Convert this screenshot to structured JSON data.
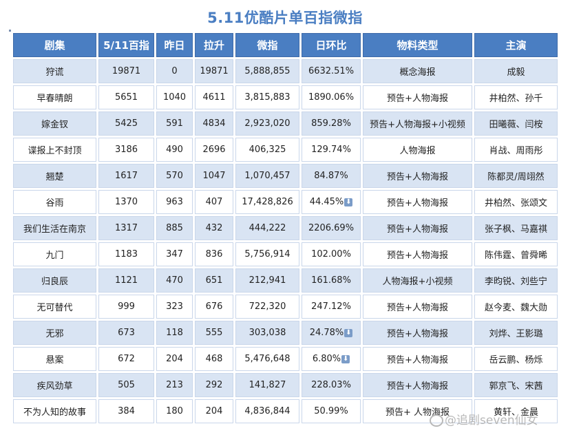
{
  "title": "5.11优酷片单百指微指",
  "headers": [
    "剧集",
    "5/11百指",
    "昨日",
    "拉升",
    "微指",
    "日环比",
    "物料类型",
    "主演"
  ],
  "rows": [
    {
      "name": "狩谎",
      "baizhi": "19871",
      "yesterday": "0",
      "rise": "19871",
      "weizhi": "5,888,855",
      "change": "6632.51%",
      "down": false,
      "material": "概念海报",
      "cast": "成毅"
    },
    {
      "name": "早春晴朗",
      "baizhi": "5651",
      "yesterday": "1040",
      "rise": "4611",
      "weizhi": "3,815,883",
      "change": "1890.06%",
      "down": false,
      "material": "预告+人物海报",
      "cast": "井柏然、孙千"
    },
    {
      "name": "嫁金钗",
      "baizhi": "5425",
      "yesterday": "591",
      "rise": "4834",
      "weizhi": "2,923,020",
      "change": "859.28%",
      "down": false,
      "material": "预告+人物海报+小视频",
      "cast": "田曦薇、闫桉"
    },
    {
      "name": "谍报上不封顶",
      "baizhi": "3186",
      "yesterday": "490",
      "rise": "2696",
      "weizhi": "406,325",
      "change": "129.74%",
      "down": false,
      "material": "人物海报",
      "cast": "肖战、周雨彤"
    },
    {
      "name": "翘楚",
      "baizhi": "1617",
      "yesterday": "570",
      "rise": "1047",
      "weizhi": "1,070,457",
      "change": "84.87%",
      "down": false,
      "material": "预告+人物海报",
      "cast": "陈都灵/周翊然"
    },
    {
      "name": "谷雨",
      "baizhi": "1370",
      "yesterday": "963",
      "rise": "407",
      "weizhi": "17,428,826",
      "change": "44.45%",
      "down": true,
      "material": "预告+人物海报",
      "cast": "井柏然、张颂文"
    },
    {
      "name": "我们生活在南京",
      "baizhi": "1317",
      "yesterday": "885",
      "rise": "432",
      "weizhi": "444,222",
      "change": "2206.69%",
      "down": false,
      "material": "预告+人物海报",
      "cast": "张子枫、马嘉祺"
    },
    {
      "name": "九门",
      "baizhi": "1183",
      "yesterday": "347",
      "rise": "836",
      "weizhi": "5,756,914",
      "change": "102.00%",
      "down": false,
      "material": "预告+人物海报",
      "cast": "陈伟霆、曾舜晞"
    },
    {
      "name": "归良辰",
      "baizhi": "1121",
      "yesterday": "470",
      "rise": "651",
      "weizhi": "212,941",
      "change": "161.68%",
      "down": false,
      "material": "人物海报+小视频",
      "cast": "李昀锐、刘些宁"
    },
    {
      "name": "无可替代",
      "baizhi": "999",
      "yesterday": "323",
      "rise": "676",
      "weizhi": "722,320",
      "change": "247.12%",
      "down": false,
      "material": "预告+人物海报",
      "cast": "赵今麦、魏大勋"
    },
    {
      "name": "无邪",
      "baizhi": "673",
      "yesterday": "118",
      "rise": "555",
      "weizhi": "303,038",
      "change": "24.78%",
      "down": true,
      "material": "预告+人物海报",
      "cast": "刘烨、王影璐"
    },
    {
      "name": "悬案",
      "baizhi": "672",
      "yesterday": "204",
      "rise": "468",
      "weizhi": "5,476,648",
      "change": "6.80%",
      "down": true,
      "material": "预告+人物海报",
      "cast": "岳云鹏、杨烁"
    },
    {
      "name": "疾风劲草",
      "baizhi": "505",
      "yesterday": "213",
      "rise": "292",
      "weizhi": "141,827",
      "change": "228.03%",
      "down": false,
      "material": "预告+人物海报",
      "cast": "郭京飞、宋茜"
    },
    {
      "name": "不为人知的故事",
      "baizhi": "384",
      "yesterday": "180",
      "rise": "204",
      "weizhi": "4,836,844",
      "change": "50.99%",
      "down": false,
      "material": "预告+ 人物海报",
      "cast": "黄轩、金晨"
    }
  ],
  "watermark": "@追剧seven仙女",
  "colors": {
    "header": "#4a7ec2",
    "stripe": "#d9e4f3",
    "title": "#4a7ec2"
  }
}
